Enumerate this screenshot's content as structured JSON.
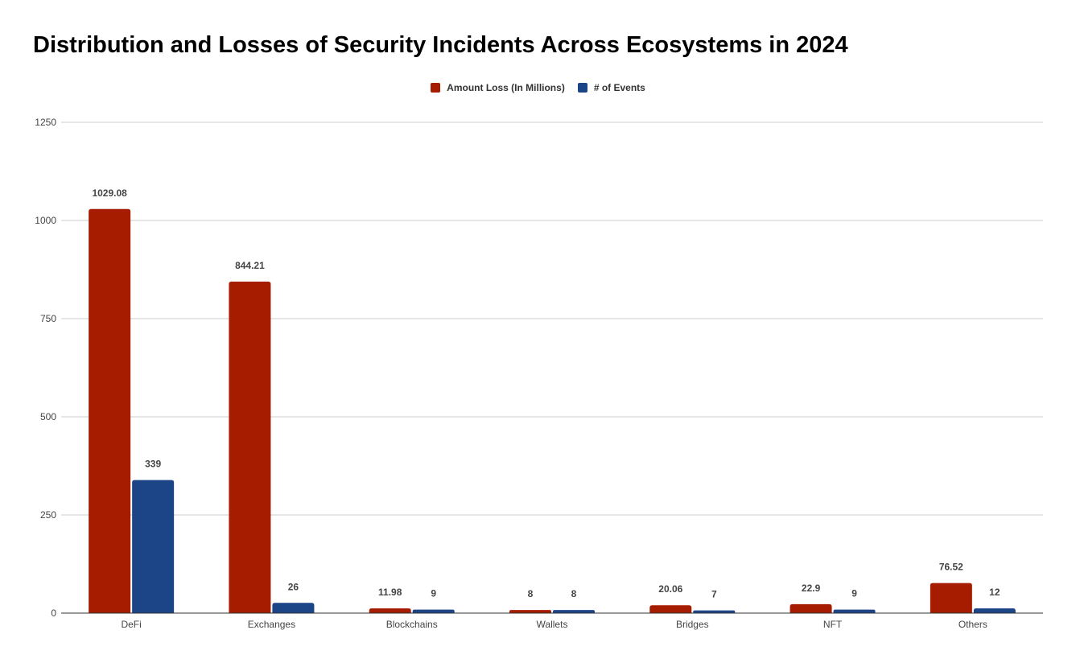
{
  "chart_data": {
    "type": "bar",
    "title": "Distribution and Losses of Security Incidents Across Ecosystems in 2024",
    "xlabel": "",
    "ylabel": "",
    "categories": [
      "DeFi",
      "Exchanges",
      "Blockchains",
      "Wallets",
      "Bridges",
      "NFT",
      "Others"
    ],
    "series": [
      {
        "name": "Amount Loss (In Millions)",
        "color": "#a61c00",
        "values": [
          1029.08,
          844.21,
          11.98,
          8,
          20.06,
          22.9,
          76.52
        ]
      },
      {
        "name": "# of Events",
        "color": "#1c4587",
        "values": [
          339,
          26,
          9,
          8,
          7,
          9,
          12
        ]
      }
    ],
    "ylim": [
      0,
      1250
    ],
    "yticks": [
      0,
      250,
      500,
      750,
      1000,
      1250
    ],
    "grid": true,
    "legend_position": "top-center",
    "data_labels": true
  }
}
